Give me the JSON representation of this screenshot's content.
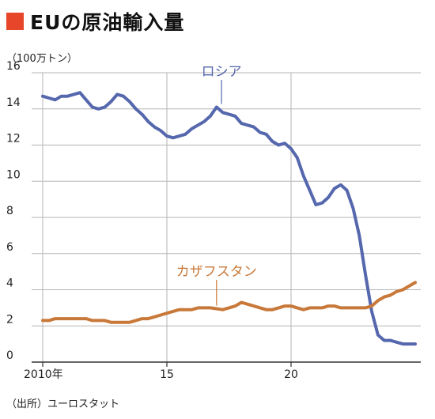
{
  "title": "EUの原油輸入量",
  "unit_label": "（100万トン）",
  "source_label": "（出所）ユーロスタット",
  "colors": {
    "title_marker": "#e8462a",
    "russia": "#5567ad",
    "kazakhstan": "#c8793a",
    "grid": "#b5b5b5",
    "axis": "#333333"
  },
  "chart_data": {
    "type": "line",
    "title": "EUの原油輸入量",
    "ylabel": "（100万トン）",
    "xlabel": "",
    "xlim": [
      2010,
      2025
    ],
    "ylim": [
      0,
      16
    ],
    "grid": true,
    "y_ticks": [
      0,
      2,
      4,
      6,
      8,
      10,
      12,
      14,
      16
    ],
    "x_ticks": [
      {
        "value": 2010,
        "label": "2010年"
      },
      {
        "value": 2015,
        "label": "15"
      },
      {
        "value": 2020,
        "label": "20"
      }
    ],
    "series": [
      {
        "name": "ロシア",
        "label_anchor": [
          2017.2,
          14.1
        ],
        "x": [
          2010.0,
          2010.25,
          2010.5,
          2010.75,
          2011.0,
          2011.25,
          2011.5,
          2011.75,
          2012.0,
          2012.25,
          2012.5,
          2012.75,
          2013.0,
          2013.25,
          2013.5,
          2013.75,
          2014.0,
          2014.25,
          2014.5,
          2014.75,
          2015.0,
          2015.25,
          2015.5,
          2015.75,
          2016.0,
          2016.25,
          2016.5,
          2016.75,
          2017.0,
          2017.25,
          2017.5,
          2017.75,
          2018.0,
          2018.25,
          2018.5,
          2018.75,
          2019.0,
          2019.25,
          2019.5,
          2019.75,
          2020.0,
          2020.25,
          2020.5,
          2020.75,
          2021.0,
          2021.25,
          2021.5,
          2021.75,
          2022.0,
          2022.25,
          2022.5,
          2022.75,
          2023.0,
          2023.25,
          2023.5,
          2023.75,
          2024.0,
          2024.25,
          2024.5,
          2024.75,
          2025.0
        ],
        "y": [
          14.7,
          14.6,
          14.5,
          14.7,
          14.7,
          14.8,
          14.9,
          14.5,
          14.1,
          14.0,
          14.1,
          14.4,
          14.8,
          14.7,
          14.4,
          14.0,
          13.7,
          13.3,
          13.0,
          12.8,
          12.5,
          12.4,
          12.5,
          12.6,
          12.9,
          13.1,
          13.3,
          13.6,
          14.1,
          13.8,
          13.7,
          13.6,
          13.2,
          13.1,
          13.0,
          12.7,
          12.6,
          12.2,
          12.0,
          12.1,
          11.8,
          11.3,
          10.3,
          9.5,
          8.7,
          8.8,
          9.1,
          9.6,
          9.8,
          9.5,
          8.5,
          7.0,
          4.8,
          2.8,
          1.5,
          1.2,
          1.2,
          1.1,
          1.0,
          1.0,
          1.0
        ]
      },
      {
        "name": "カザフスタン",
        "label_anchor": [
          2017.0,
          2.95
        ],
        "x": [
          2010.0,
          2010.25,
          2010.5,
          2010.75,
          2011.0,
          2011.25,
          2011.5,
          2011.75,
          2012.0,
          2012.25,
          2012.5,
          2012.75,
          2013.0,
          2013.25,
          2013.5,
          2013.75,
          2014.0,
          2014.25,
          2014.5,
          2014.75,
          2015.0,
          2015.25,
          2015.5,
          2015.75,
          2016.0,
          2016.25,
          2016.5,
          2016.75,
          2017.0,
          2017.25,
          2017.5,
          2017.75,
          2018.0,
          2018.25,
          2018.5,
          2018.75,
          2019.0,
          2019.25,
          2019.5,
          2019.75,
          2020.0,
          2020.25,
          2020.5,
          2020.75,
          2021.0,
          2021.25,
          2021.5,
          2021.75,
          2022.0,
          2022.25,
          2022.5,
          2022.75,
          2023.0,
          2023.25,
          2023.5,
          2023.75,
          2024.0,
          2024.25,
          2024.5,
          2024.75,
          2025.0
        ],
        "y": [
          2.3,
          2.3,
          2.4,
          2.4,
          2.4,
          2.4,
          2.4,
          2.4,
          2.3,
          2.3,
          2.3,
          2.2,
          2.2,
          2.2,
          2.2,
          2.3,
          2.4,
          2.4,
          2.5,
          2.6,
          2.7,
          2.8,
          2.9,
          2.9,
          2.9,
          3.0,
          3.0,
          3.0,
          2.95,
          2.9,
          3.0,
          3.1,
          3.3,
          3.2,
          3.1,
          3.0,
          2.9,
          2.9,
          3.0,
          3.1,
          3.1,
          3.0,
          2.9,
          3.0,
          3.0,
          3.0,
          3.1,
          3.1,
          3.0,
          3.0,
          3.0,
          3.0,
          3.0,
          3.1,
          3.4,
          3.6,
          3.7,
          3.9,
          4.0,
          4.2,
          4.4
        ]
      }
    ]
  }
}
